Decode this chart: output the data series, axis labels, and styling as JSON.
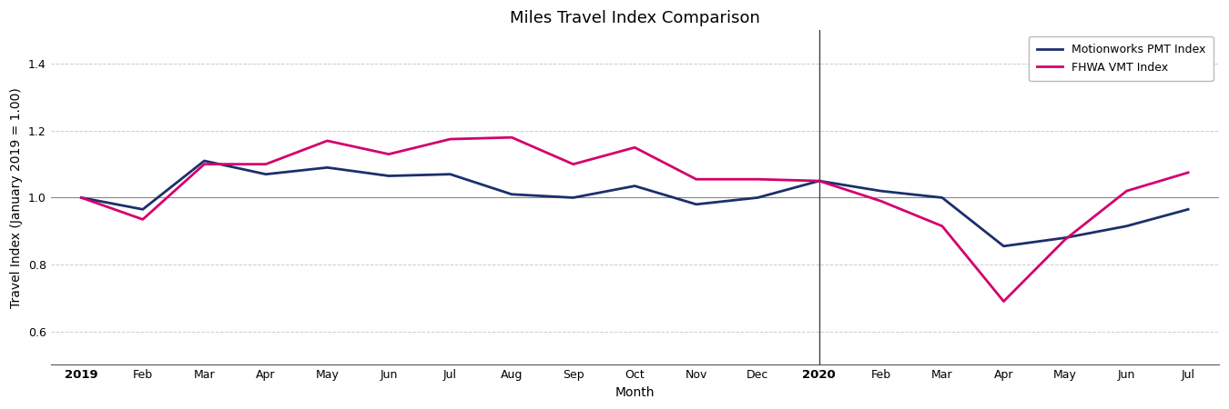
{
  "title": "Miles Travel Index Comparison",
  "xlabel": "Month",
  "ylabel": "Travel Index (January 2019 = 1.00)",
  "x_labels": [
    "2019",
    "Feb",
    "Mar",
    "Apr",
    "May",
    "Jun",
    "Jul",
    "Aug",
    "Sep",
    "Oct",
    "Nov",
    "Dec",
    "2020",
    "Feb",
    "Mar",
    "Apr",
    "May",
    "Jun",
    "Jul"
  ],
  "pmt_values": [
    1.0,
    0.965,
    1.11,
    1.07,
    1.09,
    1.065,
    1.07,
    1.01,
    1.0,
    1.035,
    0.98,
    1.0,
    1.05,
    1.02,
    1.0,
    0.855,
    0.88,
    0.915,
    0.965
  ],
  "vmt_values": [
    1.0,
    0.935,
    1.1,
    1.1,
    1.17,
    1.13,
    1.175,
    1.18,
    1.1,
    1.15,
    1.055,
    1.055,
    1.05,
    0.99,
    0.915,
    0.69,
    0.875,
    1.02,
    1.075
  ],
  "pmt_color": "#1c2f6b",
  "vmt_color": "#d4006e",
  "pmt_label": "Motionworks PMT Index",
  "vmt_label": "FHWA VMT Index",
  "ylim": [
    0.5,
    1.5
  ],
  "yticks": [
    0.6,
    0.8,
    1.0,
    1.2,
    1.4
  ],
  "vline_x": 12,
  "vline_color": "#444444",
  "grid_color": "#cccccc",
  "bg_color": "#ffffff",
  "linewidth": 2.0,
  "title_fontsize": 13,
  "label_fontsize": 10,
  "tick_fontsize": 9,
  "legend_fontsize": 9
}
